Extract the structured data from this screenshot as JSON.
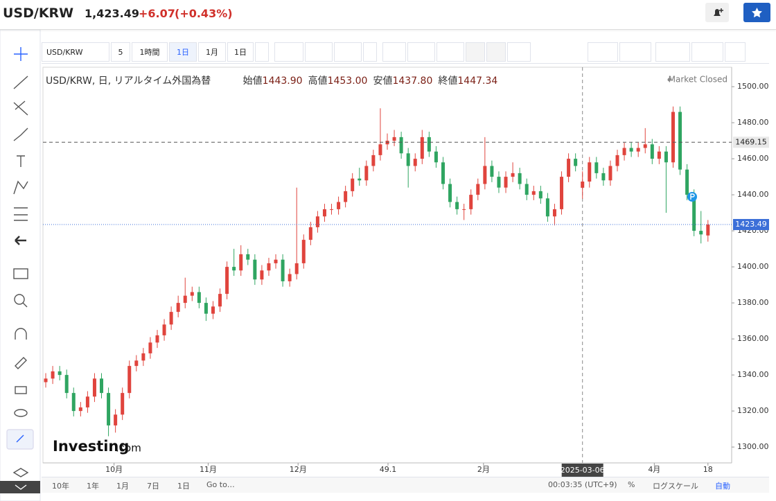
{
  "header": {
    "symbol": "USD/KRW",
    "price": "1,423.49",
    "change": "+6.07",
    "change_pct": "(+0.43%)"
  },
  "toolbar": {
    "symbol": "USD/KRW",
    "items": [
      "5",
      "1時間",
      "1日",
      "1月",
      "1日"
    ]
  },
  "bottom_bar": {
    "ranges": [
      "10年",
      "1年",
      "1月",
      "7日",
      "1日"
    ],
    "goto": "Go to…",
    "clock": "00:03:35 (UTC+9)",
    "options": [
      "%",
      "ログスケール",
      "自動"
    ]
  },
  "watermark": {
    "brand": "Investing",
    "suffix": ".com"
  },
  "chart_data": {
    "type": "candlestick",
    "title": "USD/KRW, 日, リアルタイム外国為替",
    "ohlc_legend": {
      "labels": [
        "始値",
        "高値",
        "安値",
        "終値"
      ],
      "values": [
        "1443.90",
        "1453.00",
        "1437.80",
        "1447.34"
      ]
    },
    "status": "Market Closed",
    "up_color": "#e0443d",
    "down_color": "#2fa561",
    "open": [
      1336,
      1338,
      1342,
      1340,
      1330,
      1320,
      1322,
      1328,
      1338,
      1330,
      1312,
      1318,
      1330,
      1345,
      1348,
      1352,
      1358,
      1362,
      1368,
      1375,
      1380,
      1384,
      1386,
      1380,
      1374,
      1378,
      1385,
      1400,
      1398,
      1407,
      1404,
      1393,
      1398,
      1402,
      1404,
      1392,
      1396,
      1402,
      1415,
      1422,
      1428,
      1432,
      1432,
      1436,
      1442,
      1449,
      1448,
      1456,
      1462,
      1468,
      1470,
      1472,
      1463,
      1456,
      1460,
      1472,
      1464,
      1458,
      1446,
      1436,
      1432,
      1432,
      1440,
      1446,
      1456,
      1450,
      1444,
      1450,
      1452,
      1446,
      1440,
      1442,
      1438,
      1428,
      1432,
      1450,
      1460,
      1443.9,
      1447.34,
      1458,
      1452,
      1448,
      1456,
      1462,
      1466,
      1464,
      1466,
      1468,
      1460,
      1464,
      1458,
      1486,
      1454,
      1440,
      1420,
      1417.42
    ],
    "high": [
      1341,
      1345,
      1345,
      1343,
      1333,
      1325,
      1331,
      1341,
      1341,
      1333,
      1321,
      1333,
      1348,
      1351,
      1355,
      1361,
      1365,
      1371,
      1378,
      1384,
      1394,
      1389,
      1389,
      1383,
      1381,
      1388,
      1403,
      1410,
      1412,
      1410,
      1407,
      1401,
      1405,
      1407,
      1407,
      1399,
      1444,
      1418,
      1425,
      1431,
      1435,
      1435,
      1439,
      1445,
      1452,
      1455,
      1459,
      1465,
      1488,
      1474,
      1476,
      1475,
      1466,
      1463,
      1476,
      1475,
      1467,
      1461,
      1449,
      1439,
      1435,
      1443,
      1449,
      1472,
      1459,
      1453,
      1453,
      1458,
      1455,
      1449,
      1445,
      1445,
      1441,
      1435,
      1453,
      1463,
      1463,
      1453,
      1461,
      1461,
      1455,
      1459,
      1465,
      1469,
      1469,
      1469,
      1477,
      1471,
      1467,
      1467,
      1489,
      1489,
      1457,
      1443,
      1431,
      1426
    ],
    "low": [
      1333,
      1335,
      1337,
      1327,
      1317,
      1317,
      1319,
      1325,
      1327,
      1306,
      1308,
      1315,
      1327,
      1342,
      1345,
      1349,
      1355,
      1359,
      1365,
      1372,
      1377,
      1381,
      1377,
      1370,
      1371,
      1375,
      1382,
      1395,
      1395,
      1401,
      1390,
      1390,
      1395,
      1399,
      1389,
      1389,
      1393,
      1399,
      1412,
      1419,
      1425,
      1429,
      1429,
      1433,
      1439,
      1445,
      1445,
      1453,
      1459,
      1465,
      1467,
      1460,
      1444,
      1453,
      1457,
      1461,
      1455,
      1443,
      1433,
      1429,
      1426,
      1429,
      1437,
      1443,
      1447,
      1441,
      1441,
      1447,
      1443,
      1437,
      1437,
      1435,
      1425,
      1423,
      1429,
      1447,
      1453,
      1437.8,
      1444,
      1449,
      1445,
      1445,
      1453,
      1459,
      1461,
      1461,
      1463,
      1457,
      1457,
      1430,
      1455,
      1451,
      1437,
      1417,
      1413,
      1414
    ],
    "close": [
      1338,
      1342,
      1340,
      1330,
      1320,
      1322,
      1328,
      1338,
      1330,
      1312,
      1318,
      1330,
      1345,
      1348,
      1352,
      1358,
      1362,
      1368,
      1375,
      1380,
      1384,
      1386,
      1380,
      1374,
      1378,
      1385,
      1400,
      1398,
      1407,
      1404,
      1393,
      1398,
      1402,
      1404,
      1392,
      1396,
      1402,
      1415,
      1422,
      1428,
      1432,
      1432,
      1436,
      1442,
      1449,
      1448,
      1456,
      1462,
      1468,
      1470,
      1472,
      1463,
      1456,
      1460,
      1472,
      1464,
      1458,
      1446,
      1436,
      1432,
      1432,
      1440,
      1446,
      1456,
      1450,
      1444,
      1450,
      1452,
      1446,
      1440,
      1442,
      1438,
      1428,
      1432,
      1450,
      1460,
      1456,
      1447.34,
      1458,
      1452,
      1448,
      1456,
      1462,
      1466,
      1464,
      1466,
      1468,
      1460,
      1464,
      1458,
      1486,
      1454,
      1440,
      1420,
      1418,
      1423.49
    ],
    "xlim": [
      -0.4,
      98.4
    ],
    "xticks": [
      {
        "value": 9.8,
        "label": "10月"
      },
      {
        "value": 23.3,
        "label": "11月"
      },
      {
        "value": 36.2,
        "label": "12月"
      },
      49.1,
      {
        "value": 62.8,
        "label": "2月"
      },
      {
        "value": 87.3,
        "label": "4月"
      },
      {
        "value": 95,
        "label": "18"
      }
    ],
    "crosshair": {
      "value": 77,
      "label": "2025-03-06"
    },
    "ylim": [
      1291.2,
      1510.8
    ],
    "yticks": [
      {
        "value": 1300,
        "label": "1300.00"
      },
      {
        "value": 1320,
        "label": "1320.00"
      },
      {
        "value": 1340,
        "label": "1340.00"
      },
      {
        "value": 1360,
        "label": "1360.00"
      },
      {
        "value": 1380,
        "label": "1380.00"
      },
      {
        "value": 1400,
        "label": "1400.00"
      },
      {
        "value": 1420,
        "label": "1420.00"
      },
      {
        "value": 1440,
        "label": "1440.00"
      },
      {
        "value": 1460,
        "label": "1460.00"
      },
      {
        "value": 1480,
        "label": "1480.00"
      },
      {
        "value": 1500,
        "label": "1500.00"
      }
    ],
    "hlines": [
      {
        "value": 1469.15,
        "style": "dashed",
        "color": "#555555",
        "label_color": "#e8e8e8",
        "text_color": "#222222"
      },
      {
        "value": 1423.49,
        "style": "dotted",
        "color": "#3c6fd8",
        "label_color": "#3c6fd8",
        "text_color": "#ffffff"
      }
    ]
  }
}
